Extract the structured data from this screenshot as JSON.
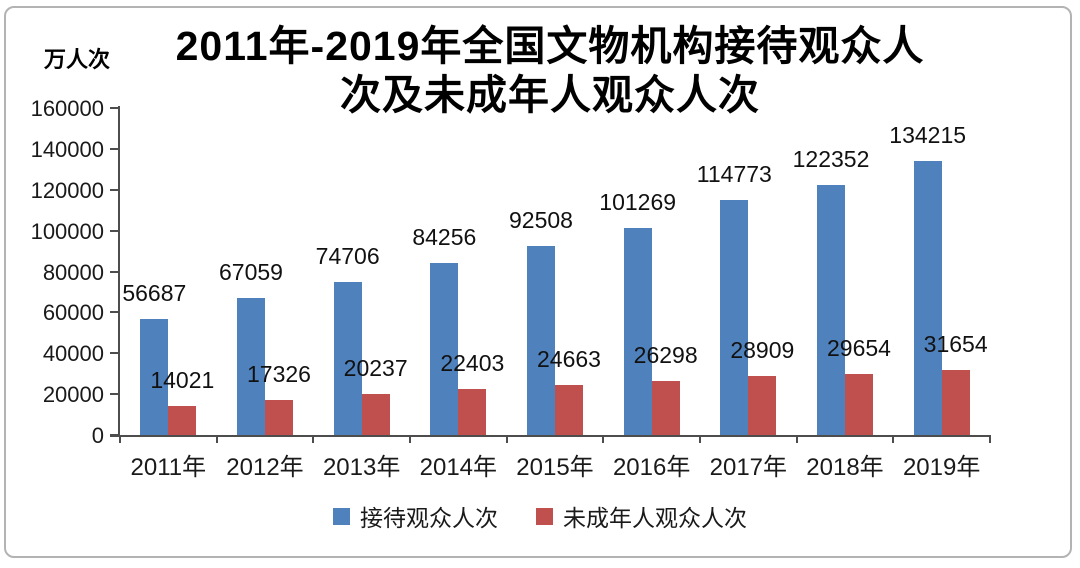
{
  "window": {
    "background": "#ffffff",
    "border_color": "#b3b3b3"
  },
  "chart_data": {
    "type": "bar",
    "title": "2011年-2019年全国文物机构接待观众人次及未成年人观众人次",
    "title_lines": [
      "2011年-2019年全国文物机构接待观众人",
      "次及未成年人观众人次"
    ],
    "unit_label": "万人次",
    "categories": [
      "2011年",
      "2012年",
      "2013年",
      "2014年",
      "2015年",
      "2016年",
      "2017年",
      "2018年",
      "2019年"
    ],
    "series": [
      {
        "name": "接待观众人次",
        "color": "#4F81BD",
        "values": [
          56687,
          67059,
          74706,
          84256,
          92508,
          101269,
          114773,
          122352,
          134215
        ]
      },
      {
        "name": "未成年人观众人次",
        "color": "#C0504D",
        "values": [
          14021,
          17326,
          20237,
          22403,
          24663,
          26298,
          28909,
          29654,
          31654
        ]
      }
    ],
    "ylim": [
      0,
      160000
    ],
    "ytick_step": 20000,
    "yticks": [
      0,
      20000,
      40000,
      60000,
      80000,
      100000,
      120000,
      140000,
      160000
    ],
    "grid": false,
    "data_labels": true,
    "legend_position": "bottom",
    "axis_color": "#4d4d4d",
    "text_color": "#1a1a1a"
  }
}
